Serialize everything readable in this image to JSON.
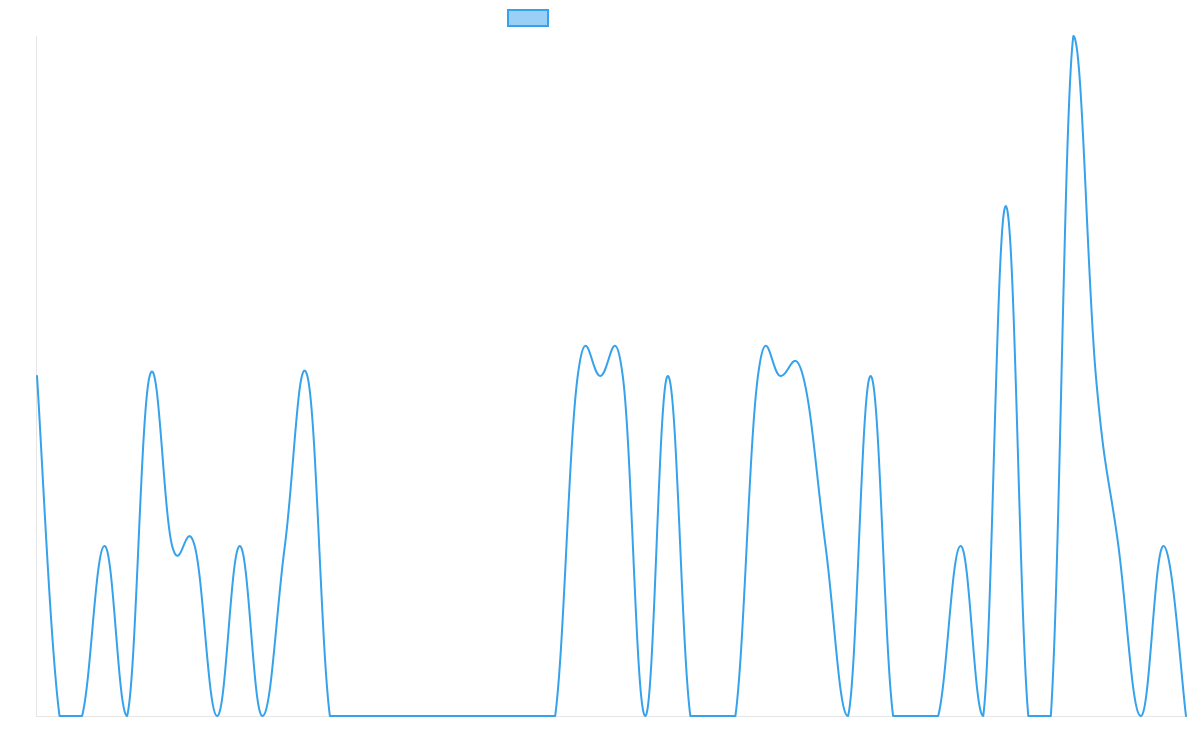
{
  "chart_data": {
    "type": "line",
    "title": "",
    "xlabel": "",
    "ylabel": "",
    "grid": false,
    "legend": "top-center",
    "ylim": [
      0,
      4
    ],
    "series": [
      {
        "values": [
          2,
          0,
          0,
          1,
          0,
          2,
          1,
          1,
          0,
          1,
          0,
          1,
          2,
          0,
          0,
          0,
          0,
          0,
          0,
          0,
          0,
          0,
          0,
          0,
          2,
          2,
          2,
          0,
          2,
          0,
          0,
          0,
          2,
          2,
          2,
          1,
          0,
          2,
          0,
          0,
          0,
          1,
          0,
          3,
          0,
          0,
          4,
          2,
          1,
          0,
          1,
          0
        ],
        "color": "#36a2eb",
        "fill": "#9ad0f5"
      }
    ]
  }
}
